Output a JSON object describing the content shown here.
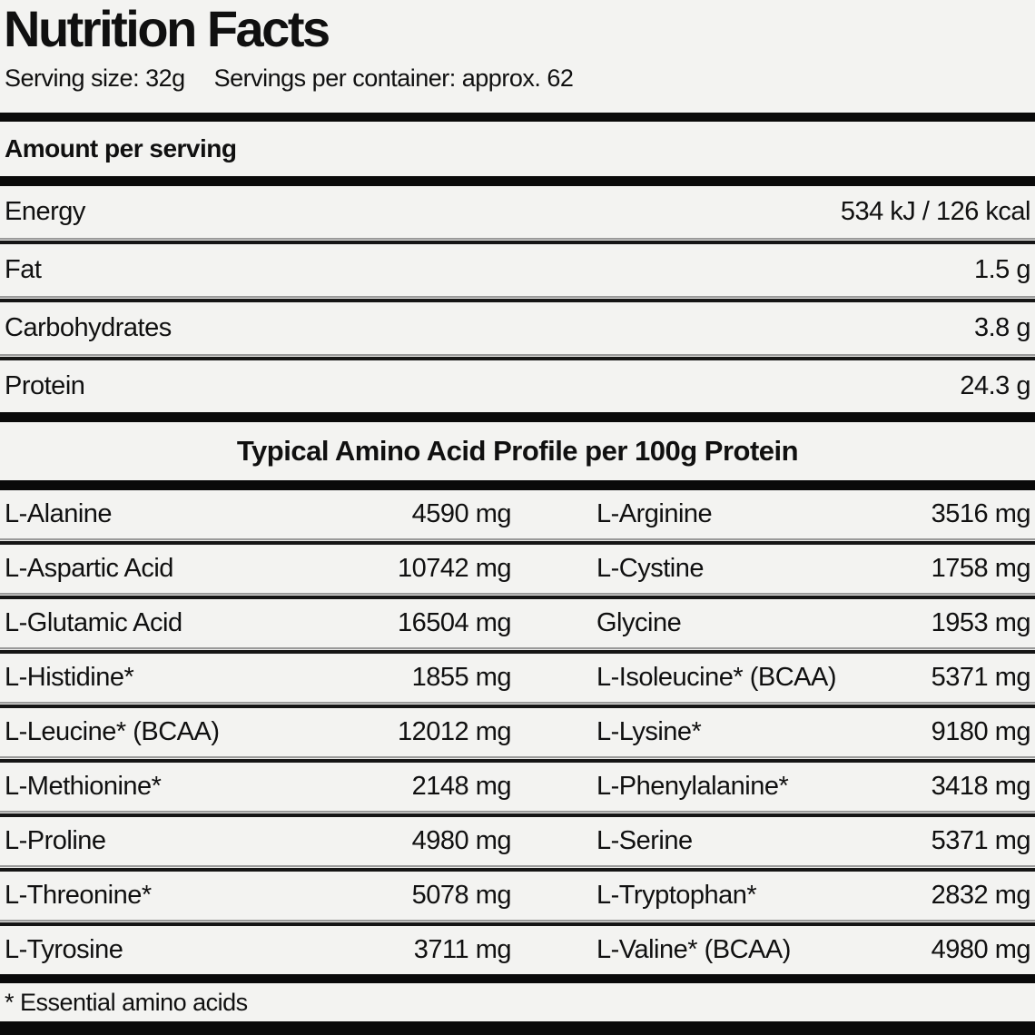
{
  "title": "Nutrition Facts",
  "serving": {
    "size": "Serving size: 32g",
    "per_container": "Servings per container: approx. 62"
  },
  "amount_header": "Amount per serving",
  "main_rows": [
    {
      "label": "Energy",
      "value": "534 kJ / 126 kcal"
    },
    {
      "label": "Fat",
      "value": "1.5 g"
    },
    {
      "label": "Carbohydrates",
      "value": "3.8 g"
    },
    {
      "label": "Protein",
      "value": "24.3 g"
    }
  ],
  "amino": {
    "header": "Typical Amino Acid Profile per 100g Protein",
    "rows": [
      {
        "left": {
          "label": "L-Alanine",
          "value": "4590 mg"
        },
        "right": {
          "label": "L-Arginine",
          "value": "3516 mg"
        }
      },
      {
        "left": {
          "label": "L-Aspartic Acid",
          "value": "10742 mg"
        },
        "right": {
          "label": "L-Cystine",
          "value": "1758 mg"
        }
      },
      {
        "left": {
          "label": "L-Glutamic Acid",
          "value": "16504 mg"
        },
        "right": {
          "label": "Glycine",
          "value": "1953 mg"
        }
      },
      {
        "left": {
          "label": "L-Histidine*",
          "value": "1855 mg"
        },
        "right": {
          "label": "L-Isoleucine* (BCAA)",
          "value": "5371 mg"
        }
      },
      {
        "left": {
          "label": "L-Leucine* (BCAA)",
          "value": "12012 mg"
        },
        "right": {
          "label": "L-Lysine*",
          "value": "9180 mg"
        }
      },
      {
        "left": {
          "label": "L-Methionine*",
          "value": "2148 mg"
        },
        "right": {
          "label": "L-Phenylalanine*",
          "value": "3418 mg"
        }
      },
      {
        "left": {
          "label": "L-Proline",
          "value": "4980 mg"
        },
        "right": {
          "label": "L-Serine",
          "value": "5371 mg"
        }
      },
      {
        "left": {
          "label": "L-Threonine*",
          "value": "5078 mg"
        },
        "right": {
          "label": "L-Tryptophan*",
          "value": "2832 mg"
        }
      },
      {
        "left": {
          "label": "L-Tyrosine",
          "value": "3711 mg"
        },
        "right": {
          "label": "L-Valine* (BCAA)",
          "value": "4980 mg"
        }
      }
    ],
    "footnote": "* Essential amino acids"
  },
  "colors": {
    "background": "#f3f3f1",
    "text": "#101010",
    "bar": "#0a0a0a",
    "separator": "#151515"
  }
}
